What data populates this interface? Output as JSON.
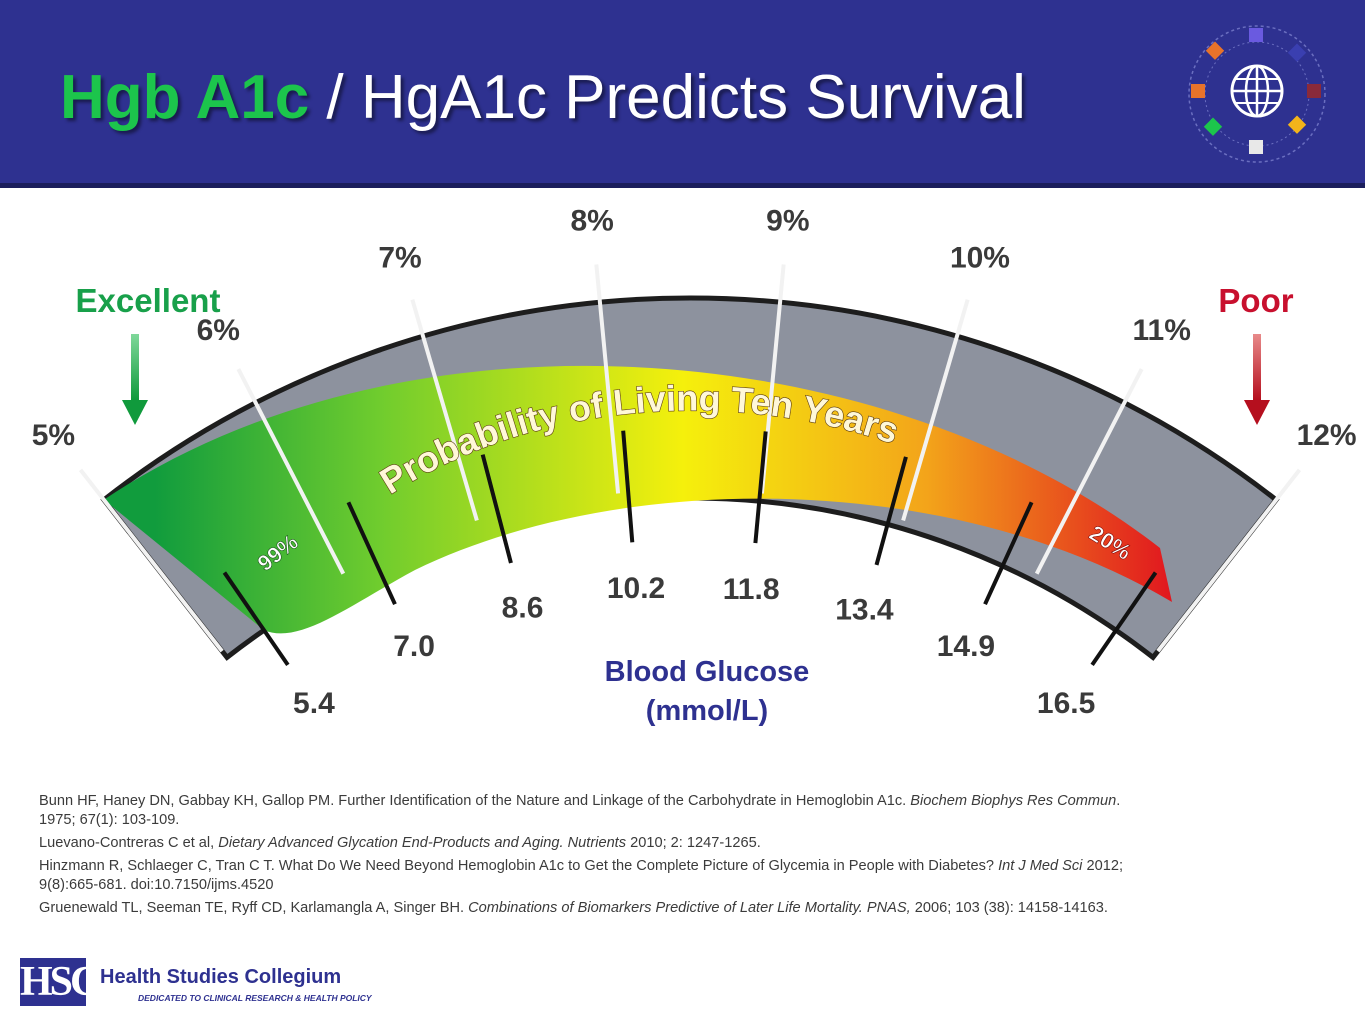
{
  "header": {
    "title_part1": "Hgb A1c",
    "title_part2": " / HgA1c Predicts Survival"
  },
  "icons": {
    "logo_icon": "globe-icon"
  },
  "colors": {
    "header_bg": "#2e3190",
    "title_green": "#1cc54c",
    "excellent": "#18a04a",
    "poor": "#c8102e",
    "blood_glucose_label": "#2e3190",
    "gauge_gray": "#8d929e",
    "gradient": [
      "#119c3d",
      "#6fcc2e",
      "#f5f00c",
      "#f3a41a",
      "#e1181f"
    ]
  },
  "chart_data": {
    "type": "gauge",
    "title": "Probability of Living Ten Years",
    "left_label": "Excellent",
    "right_label": "Poor",
    "hba1c_ticks": [
      "5%",
      "6%",
      "7%",
      "8%",
      "9%",
      "10%",
      "11%",
      "12%"
    ],
    "hba1c_values": [
      5,
      6,
      7,
      8,
      9,
      10,
      11,
      12
    ],
    "glucose_ticks": [
      "5.4",
      "7.0",
      "8.6",
      "10.2",
      "11.8",
      "13.4",
      "14.9",
      "16.5"
    ],
    "glucose_values": [
      5.4,
      7.0,
      8.6,
      10.2,
      11.8,
      13.4,
      14.9,
      16.5
    ],
    "glucose_label_line1": "Blood Glucose",
    "glucose_label_line2": "(mmol/L)",
    "survival_start": "99%",
    "survival_end": "20%",
    "survival_start_value": 99,
    "survival_end_value": 20
  },
  "references": [
    {
      "text": "Bunn HF, Haney DN, Gabbay KH, Gallop PM. Further Identification of the Nature and Linkage of the Carbohydrate in Hemoglobin A1c. ",
      "journal": "Biochem Biophys Res Commun",
      "tail": ". 1975; 67(1): 103-109."
    },
    {
      "text": "Luevano-Contreras C et al, ",
      "journal": "Dietary Advanced Glycation End-Products and Aging. Nutrients",
      "tail": " 2010; 2: 1247-1265."
    },
    {
      "text": "Hinzmann R, Schlaeger C, Tran C T. What Do We Need Beyond Hemoglobin A1c to Get the Complete Picture of Glycemia in People with Diabetes? ",
      "journal": "Int J Med Sci",
      "tail": " 2012; 9(8):665-681. doi:10.7150/ijms.4520"
    },
    {
      "text": "Gruenewald TL, Seeman TE, Ryff CD, Karlamangla A, Singer BH. ",
      "journal": "Combinations of Biomarkers Predictive of Later Life Mortality. PNAS,",
      "tail": " 2006; 103 (38): 14158-14163."
    }
  ],
  "footer": {
    "logo_text": "HSC",
    "org_name": "Health Studies Collegium",
    "tagline": "DEDICATED TO CLINICAL RESEARCH & HEALTH POLICY"
  }
}
